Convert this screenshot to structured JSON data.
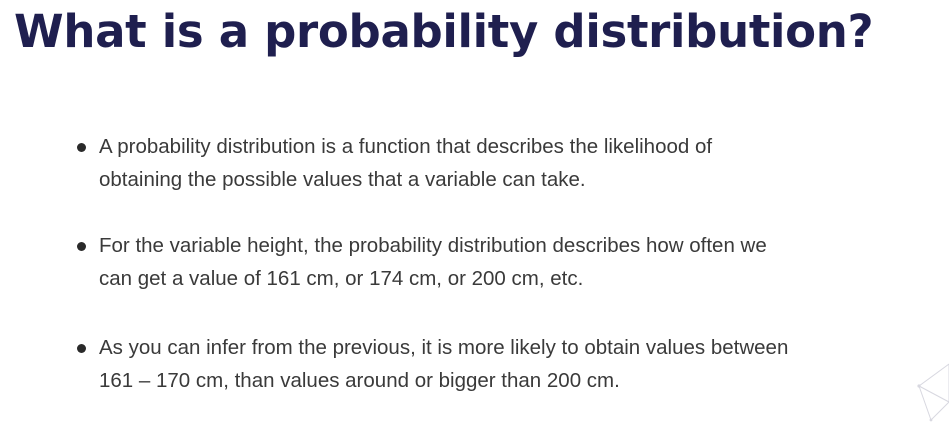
{
  "slide": {
    "title": "What is a probability distribution?",
    "bullets": [
      {
        "lines": [
          "A probability distribution is a function that describes the likelihood of",
          "obtaining the possible values that a variable can take."
        ]
      },
      {
        "lines": [
          "For the variable height, the probability distribution describes how often we",
          "can get a value of 161 cm, or 174 cm, or 200 cm, etc."
        ]
      },
      {
        "lines": [
          "As you can infer from the previous, it is more likely to obtain values between",
          "161 – 170 cm, than values around or bigger than 200 cm."
        ]
      }
    ]
  },
  "colors": {
    "title": "#1f1f4f",
    "body_text": "#3a3a3a",
    "bullet_dot": "#2a2a2a",
    "decoration": "#d8d8e0"
  },
  "icons": {
    "corner_decoration": "network-lines-icon"
  }
}
